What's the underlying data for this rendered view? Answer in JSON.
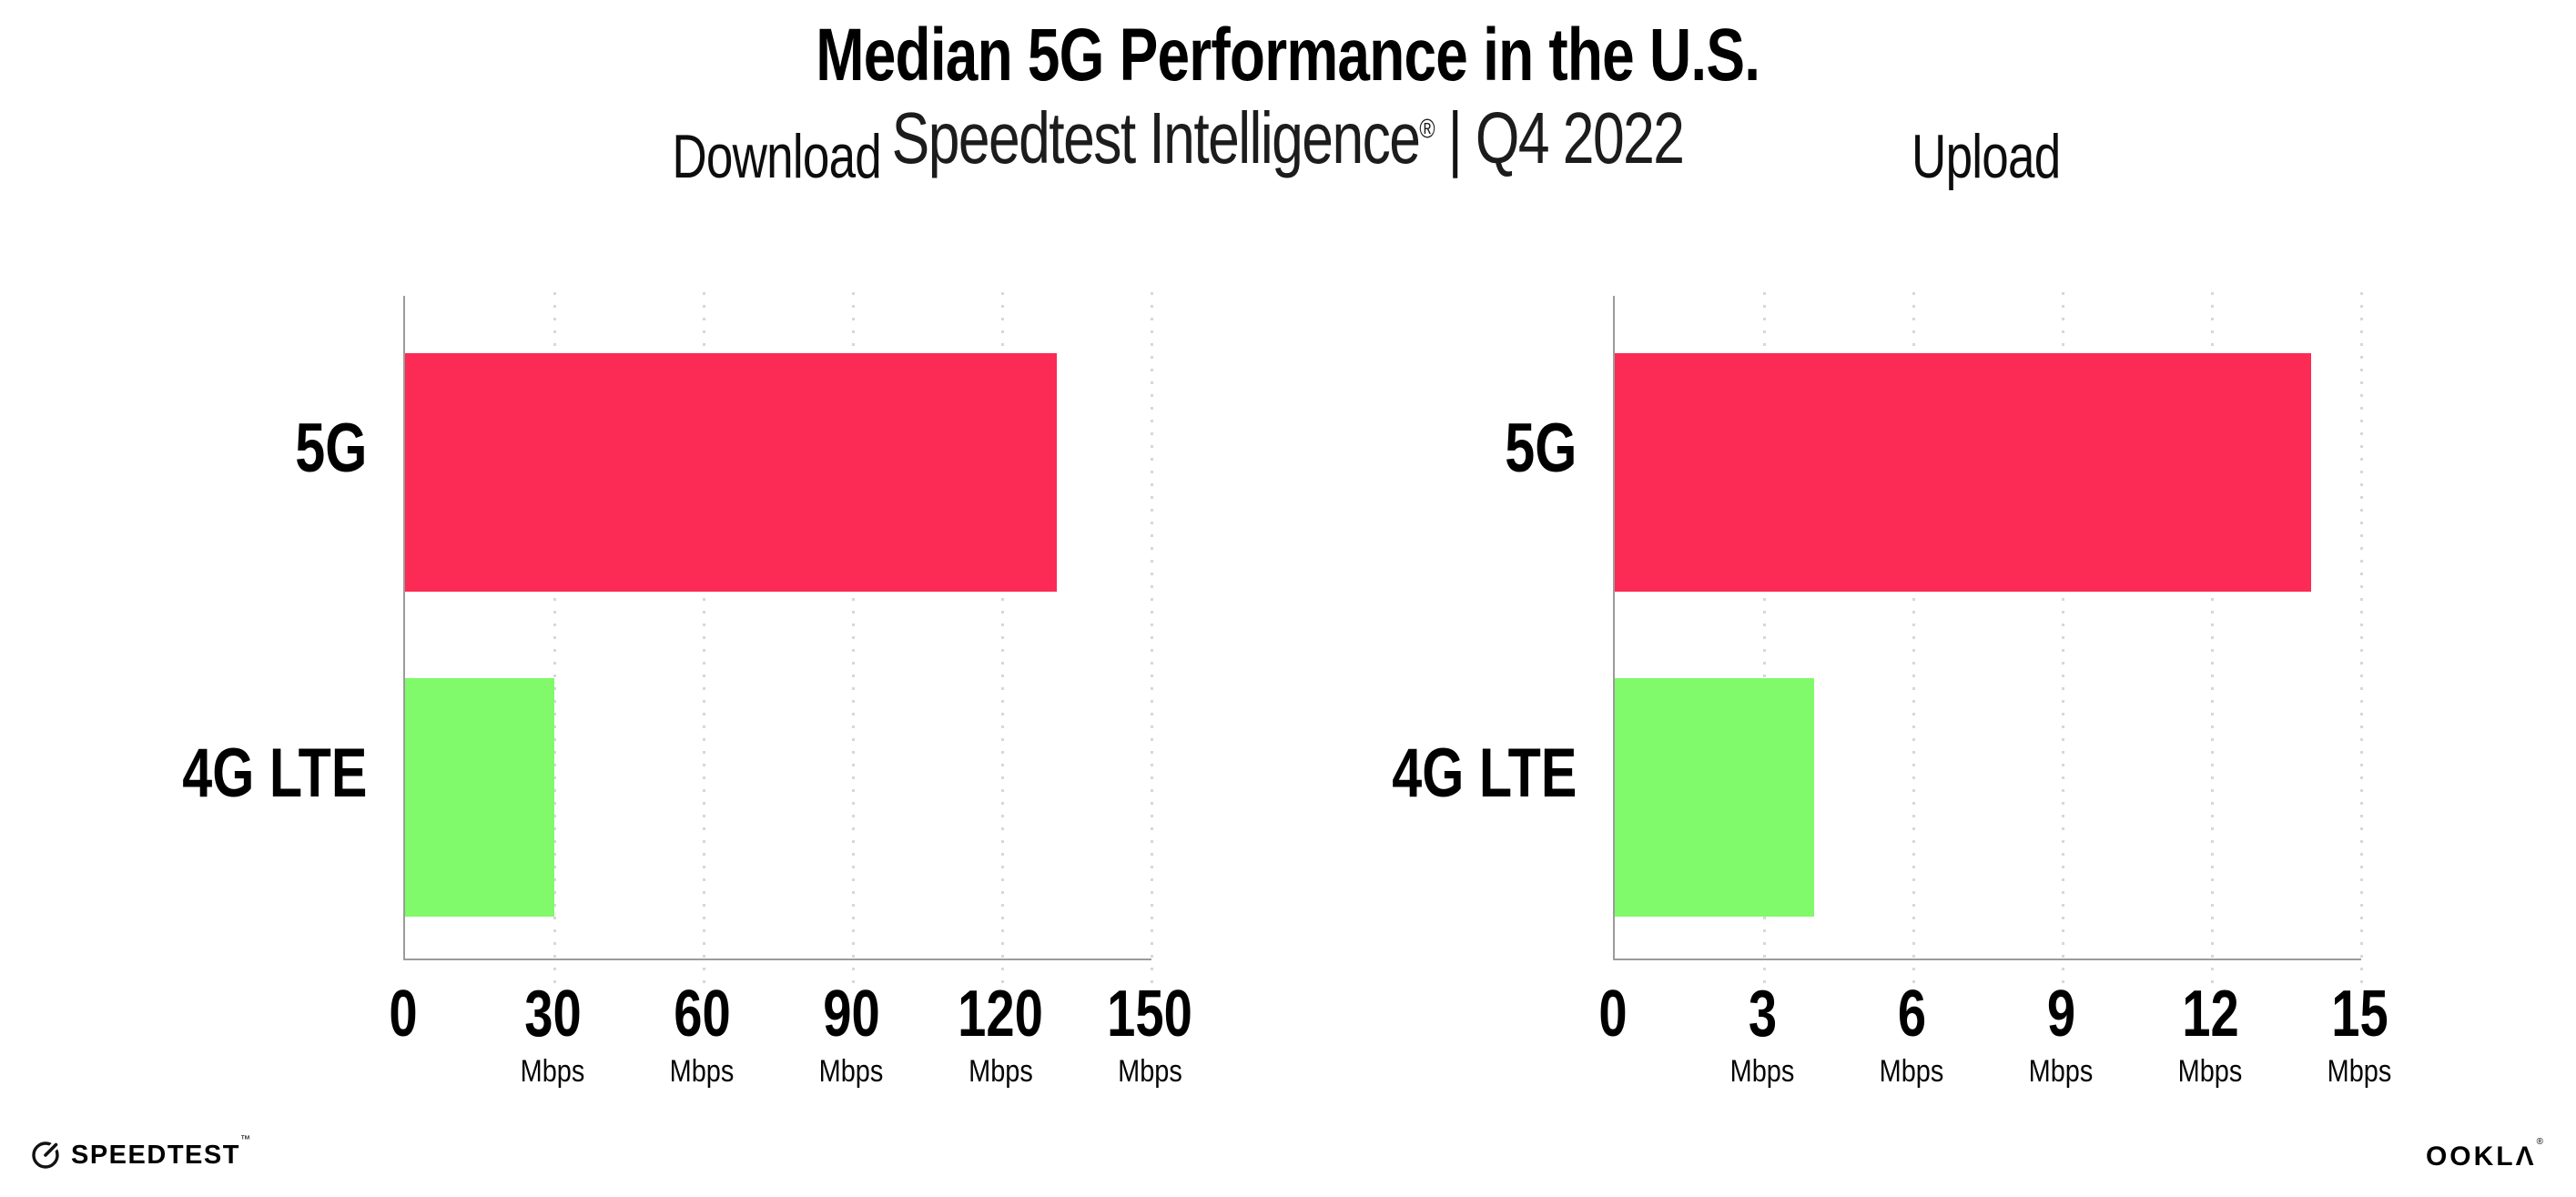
{
  "header": {
    "title": "Median 5G Performance in the U.S.",
    "subtitle_brand": "Speedtest Intelligence",
    "subtitle_registered": "®",
    "subtitle_separator": "|",
    "subtitle_period": "Q4 2022"
  },
  "chart_data": [
    {
      "type": "bar",
      "orientation": "horizontal",
      "title": "Download",
      "categories": [
        "5G",
        "4G LTE"
      ],
      "values": [
        131,
        30
      ],
      "unit": "Mbps",
      "xlim": [
        0,
        150
      ],
      "xticks": [
        0,
        30,
        60,
        90,
        120,
        150
      ],
      "bar_colors": [
        "#fb2b55",
        "#80f96b"
      ],
      "grid": "dotted-vertical-gridlines",
      "axis_color": "#9b9b9b"
    },
    {
      "type": "bar",
      "orientation": "horizontal",
      "title": "Upload",
      "categories": [
        "5G",
        "4G LTE"
      ],
      "values": [
        14,
        4
      ],
      "unit": "Mbps",
      "xlim": [
        0,
        15
      ],
      "xticks": [
        0,
        3,
        6,
        9,
        12,
        15
      ],
      "bar_colors": [
        "#fb2b55",
        "#80f96b"
      ],
      "grid": "dotted-vertical-gridlines",
      "axis_color": "#9b9b9b"
    }
  ],
  "footer": {
    "speedtest_label": "SPEEDTEST",
    "speedtest_trademark": "™",
    "ookla_label": "OOKLΛ",
    "ookla_registered": "®"
  },
  "colors": {
    "bar_5g": "#fb2b55",
    "bar_4g_lte": "#80f96b",
    "background": "#ffffff",
    "text": "#000000",
    "gridline": "#d6d7df"
  }
}
